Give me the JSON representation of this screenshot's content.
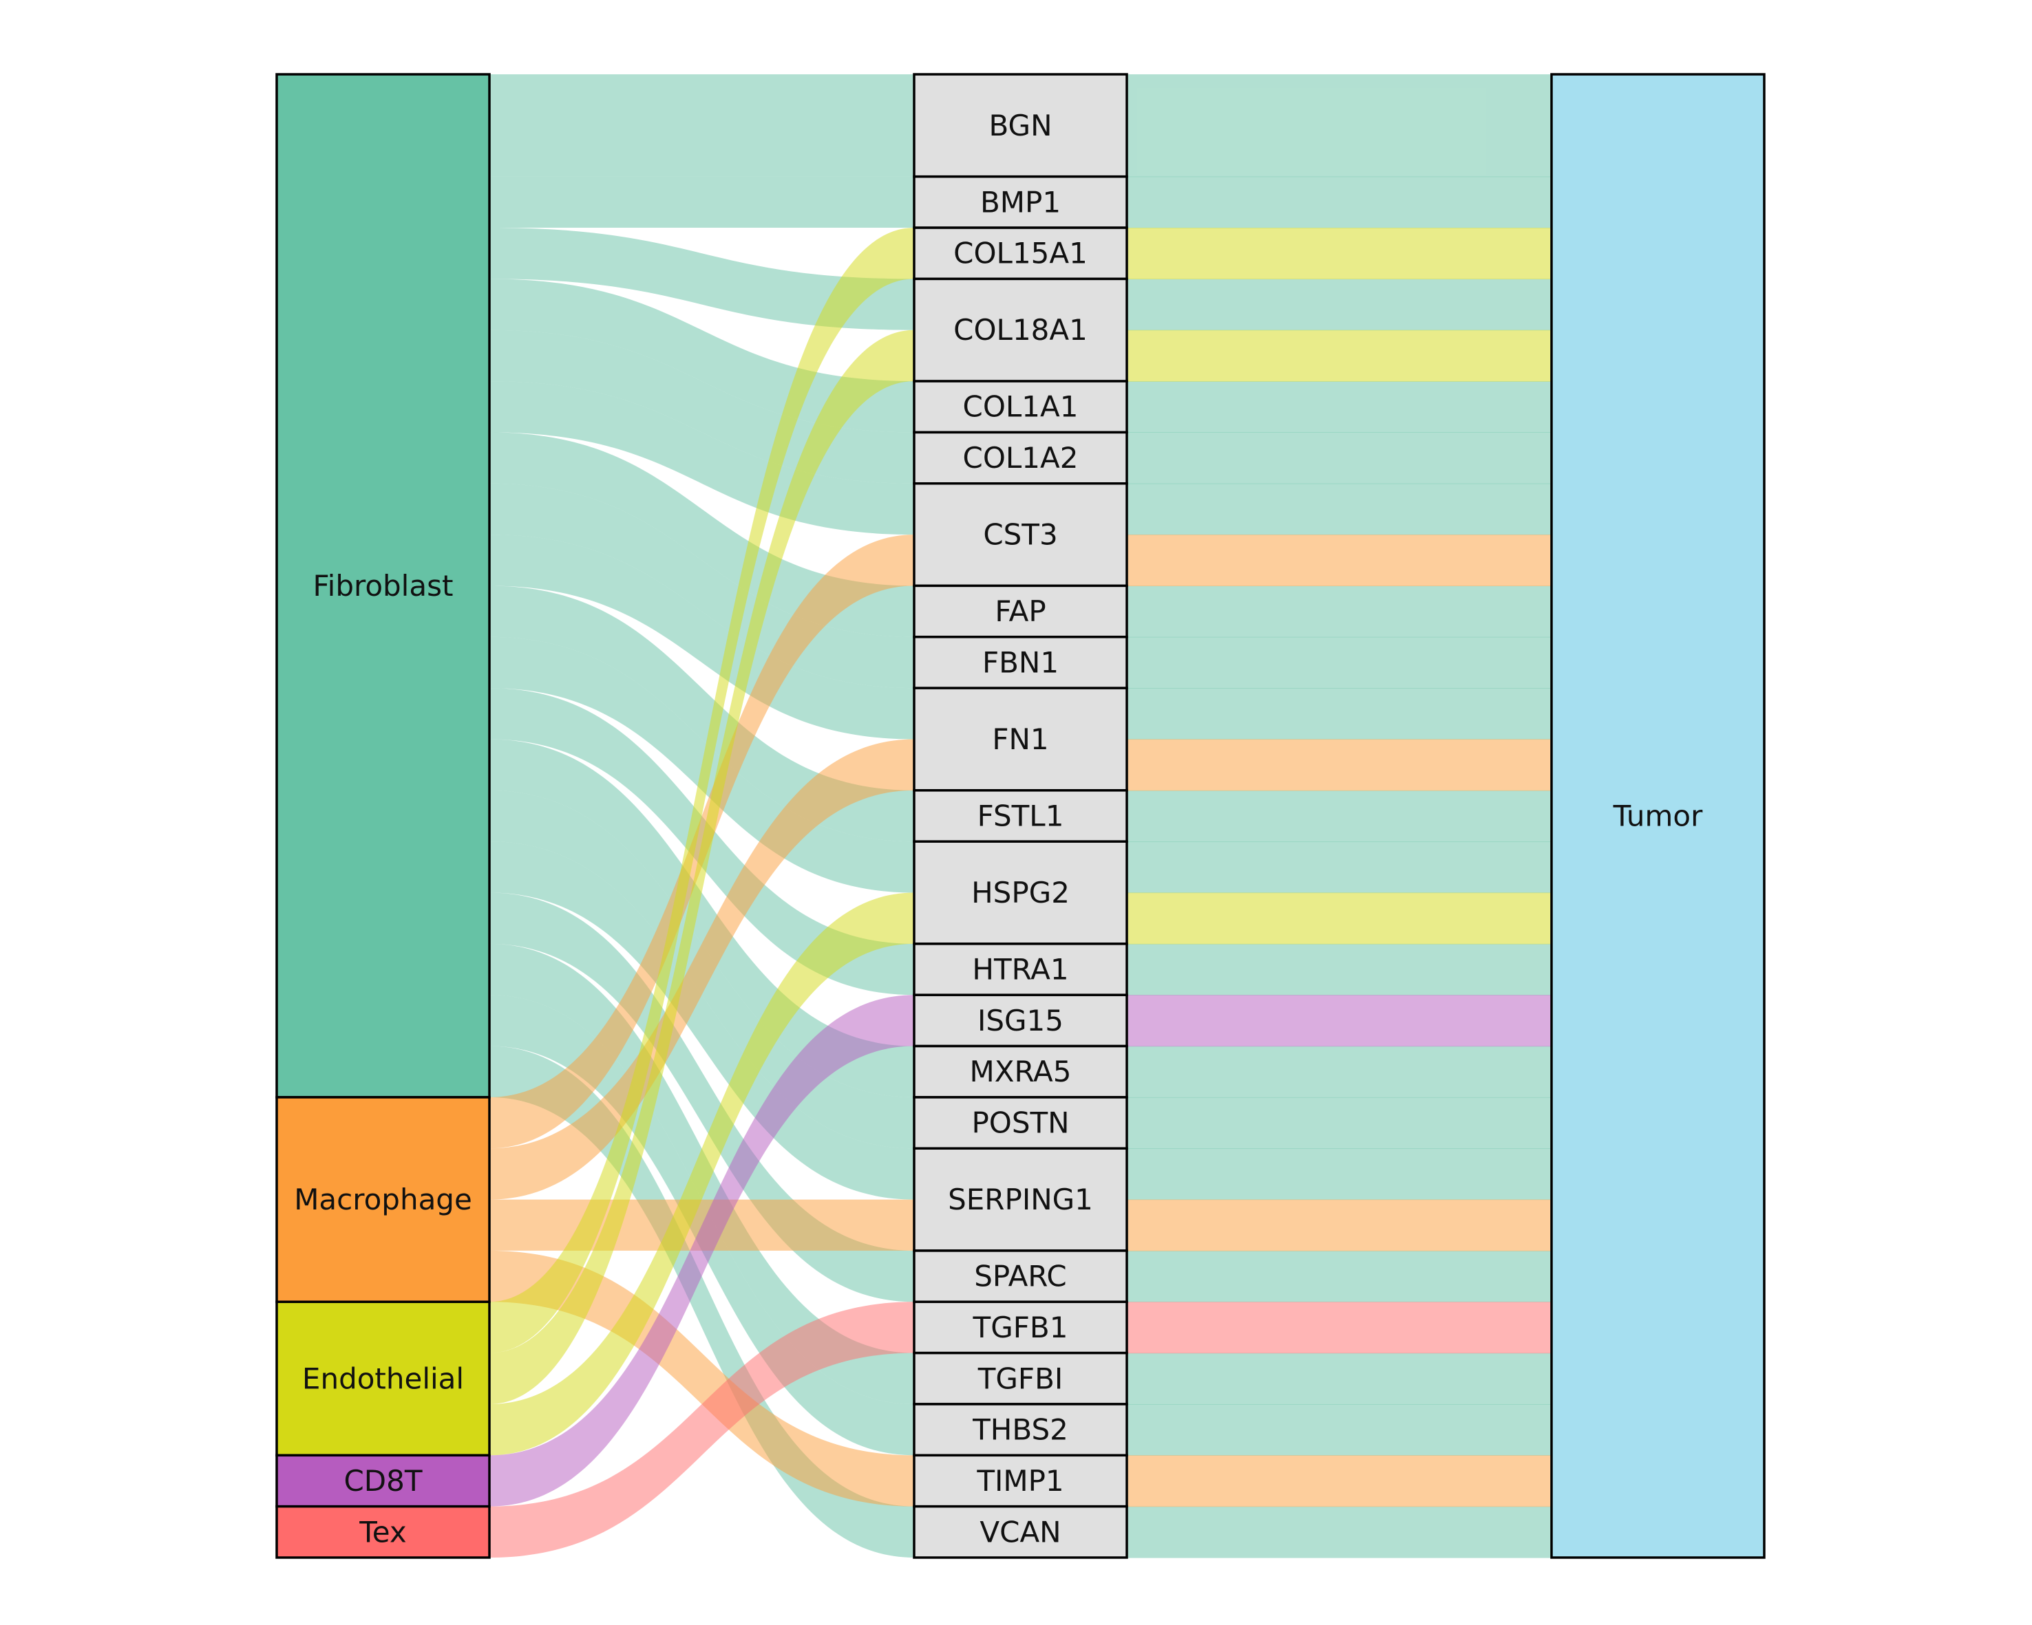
{
  "sources": [
    {
      "id": "Fibroblast",
      "label": "Fibroblast",
      "color": "#66c2a5"
    },
    {
      "id": "Macrophage",
      "label": "Macrophage",
      "color": "#fc9d3a"
    },
    {
      "id": "Endothelial",
      "label": "Endothelial",
      "color": "#d4d916"
    },
    {
      "id": "CD8T",
      "label": "CD8T",
      "color": "#b65cbf"
    },
    {
      "id": "Tex",
      "label": "Tex",
      "color": "#ff6b6b"
    }
  ],
  "genes": [
    {
      "id": "BGN",
      "label": "BGN"
    },
    {
      "id": "BMP1",
      "label": "BMP1"
    },
    {
      "id": "COL15A1",
      "label": "COL15A1"
    },
    {
      "id": "COL18A1",
      "label": "COL18A1"
    },
    {
      "id": "COL1A1",
      "label": "COL1A1"
    },
    {
      "id": "COL1A2",
      "label": "COL1A2"
    },
    {
      "id": "CST3",
      "label": "CST3"
    },
    {
      "id": "FAP",
      "label": "FAP"
    },
    {
      "id": "FBN1",
      "label": "FBN1"
    },
    {
      "id": "FN1",
      "label": "FN1"
    },
    {
      "id": "FSTL1",
      "label": "FSTL1"
    },
    {
      "id": "HSPG2",
      "label": "HSPG2"
    },
    {
      "id": "HTRA1",
      "label": "HTRA1"
    },
    {
      "id": "ISG15",
      "label": "ISG15"
    },
    {
      "id": "MXRA5",
      "label": "MXRA5"
    },
    {
      "id": "POSTN",
      "label": "POSTN"
    },
    {
      "id": "SERPING1",
      "label": "SERPING1"
    },
    {
      "id": "SPARC",
      "label": "SPARC"
    },
    {
      "id": "TGFB1",
      "label": "TGFB1"
    },
    {
      "id": "TGFBI",
      "label": "TGFBI"
    },
    {
      "id": "THBS2",
      "label": "THBS2"
    },
    {
      "id": "TIMP1",
      "label": "TIMP1"
    },
    {
      "id": "VCAN",
      "label": "VCAN"
    }
  ],
  "target": {
    "id": "Tumor",
    "label": "Tumor",
    "color": "#a6dff0"
  },
  "gene_node_color": "#e0e0e0",
  "flow_opacity": 0.5,
  "links": [
    {
      "source": "Fibroblast",
      "gene": "BGN",
      "value": 2
    },
    {
      "source": "Fibroblast",
      "gene": "BMP1",
      "value": 1
    },
    {
      "source": "Fibroblast",
      "gene": "COL18A1",
      "value": 1
    },
    {
      "source": "Fibroblast",
      "gene": "COL1A1",
      "value": 1
    },
    {
      "source": "Fibroblast",
      "gene": "COL1A2",
      "value": 1
    },
    {
      "source": "Fibroblast",
      "gene": "CST3",
      "value": 1
    },
    {
      "source": "Fibroblast",
      "gene": "FAP",
      "value": 1
    },
    {
      "source": "Fibroblast",
      "gene": "FBN1",
      "value": 1
    },
    {
      "source": "Fibroblast",
      "gene": "FN1",
      "value": 1
    },
    {
      "source": "Fibroblast",
      "gene": "FSTL1",
      "value": 1
    },
    {
      "source": "Fibroblast",
      "gene": "HSPG2",
      "value": 1
    },
    {
      "source": "Fibroblast",
      "gene": "HTRA1",
      "value": 1
    },
    {
      "source": "Fibroblast",
      "gene": "MXRA5",
      "value": 1
    },
    {
      "source": "Fibroblast",
      "gene": "POSTN",
      "value": 1
    },
    {
      "source": "Fibroblast",
      "gene": "SERPING1",
      "value": 1
    },
    {
      "source": "Fibroblast",
      "gene": "SPARC",
      "value": 1
    },
    {
      "source": "Fibroblast",
      "gene": "TGFBI",
      "value": 1
    },
    {
      "source": "Fibroblast",
      "gene": "THBS2",
      "value": 1
    },
    {
      "source": "Fibroblast",
      "gene": "VCAN",
      "value": 1
    },
    {
      "source": "Macrophage",
      "gene": "CST3",
      "value": 1
    },
    {
      "source": "Macrophage",
      "gene": "FN1",
      "value": 1
    },
    {
      "source": "Macrophage",
      "gene": "SERPING1",
      "value": 1
    },
    {
      "source": "Macrophage",
      "gene": "TIMP1",
      "value": 1
    },
    {
      "source": "Endothelial",
      "gene": "COL15A1",
      "value": 1
    },
    {
      "source": "Endothelial",
      "gene": "COL18A1",
      "value": 1
    },
    {
      "source": "Endothelial",
      "gene": "HSPG2",
      "value": 1
    },
    {
      "source": "CD8T",
      "gene": "ISG15",
      "value": 1
    },
    {
      "source": "Tex",
      "gene": "TGFB1",
      "value": 1
    }
  ]
}
